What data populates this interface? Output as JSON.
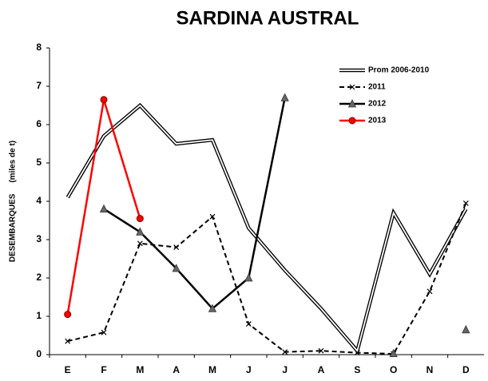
{
  "chart_data": {
    "type": "line",
    "title": "SARDINA AUSTRAL",
    "y_label": "DESEMBARQUES     (miles de t)",
    "categories": [
      "E",
      "F",
      "M",
      "A",
      "M",
      "J",
      "J",
      "A",
      "S",
      "O",
      "N",
      "D"
    ],
    "series": [
      {
        "name": "Prom 2006-2010",
        "color": "#000000",
        "style": "double",
        "marker": "none",
        "values": [
          4.1,
          5.7,
          6.5,
          5.5,
          5.6,
          3.3,
          2.2,
          1.2,
          0.1,
          3.7,
          2.1,
          3.8
        ]
      },
      {
        "name": "2011",
        "color": "#000000",
        "style": "dashed",
        "marker": "x",
        "values": [
          0.35,
          0.58,
          2.9,
          2.8,
          3.6,
          0.8,
          0.07,
          0.1,
          0.05,
          0.02,
          1.65,
          3.95
        ]
      },
      {
        "name": "2012",
        "color": "#000000",
        "style": "solid",
        "marker": "triangle",
        "values": [
          null,
          3.8,
          3.2,
          2.25,
          1.2,
          2.0,
          6.7,
          null,
          null,
          0.03,
          null,
          0.65
        ]
      },
      {
        "name": "2013",
        "color": "#ff0000",
        "style": "solid",
        "marker": "circle",
        "values": [
          1.05,
          6.65,
          3.55,
          null,
          null,
          null,
          null,
          null,
          null,
          null,
          null,
          null
        ]
      }
    ],
    "ylim": [
      0,
      8
    ],
    "yticks": [
      0,
      1,
      2,
      3,
      4,
      5,
      6,
      7,
      8
    ],
    "grid": false,
    "legend": "top-right"
  }
}
